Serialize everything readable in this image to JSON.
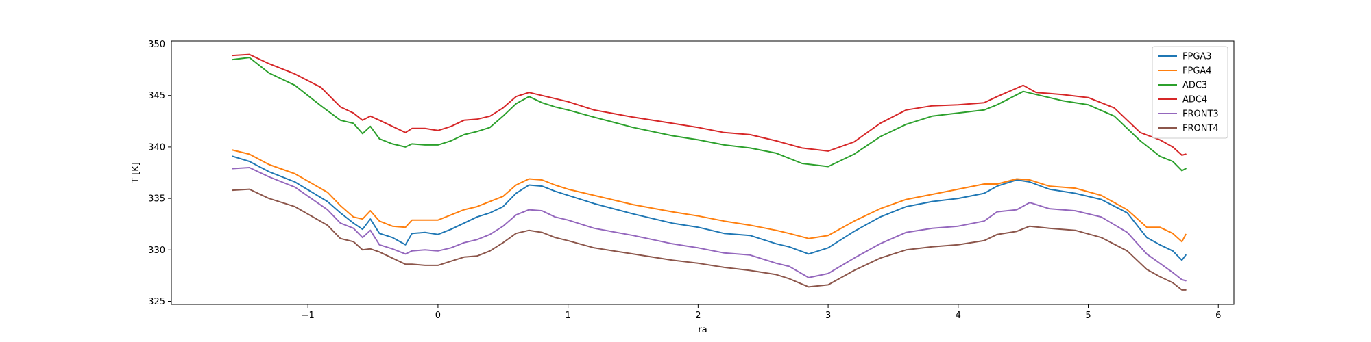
{
  "chart_data": {
    "type": "line",
    "title": "",
    "xlabel": "ra",
    "ylabel": "T [K]",
    "xlim": [
      -2.05,
      6.12
    ],
    "ylim": [
      324.7,
      350.3
    ],
    "xticks": [
      -1,
      0,
      1,
      2,
      3,
      4,
      5,
      6
    ],
    "xtick_labels": [
      "−1",
      "0",
      "1",
      "2",
      "3",
      "4",
      "5",
      "6"
    ],
    "yticks": [
      325,
      330,
      335,
      340,
      345,
      350
    ],
    "ytick_labels": [
      "325",
      "330",
      "335",
      "340",
      "345",
      "350"
    ],
    "grid": false,
    "legend_position": "top-right",
    "series": [
      {
        "name": "FPGA3",
        "color": "#1f77b4",
        "x": [
          -1.58,
          -1.45,
          -1.3,
          -1.1,
          -0.85,
          -0.75,
          -0.65,
          -0.58,
          -0.52,
          -0.45,
          -0.35,
          -0.25,
          -0.2,
          -0.1,
          0.0,
          0.1,
          0.2,
          0.3,
          0.4,
          0.5,
          0.6,
          0.7,
          0.8,
          0.9,
          1.0,
          1.2,
          1.5,
          1.8,
          2.0,
          2.2,
          2.4,
          2.6,
          2.7,
          2.85,
          3.0,
          3.2,
          3.4,
          3.6,
          3.8,
          4.0,
          4.2,
          4.3,
          4.45,
          4.55,
          4.7,
          4.9,
          5.1,
          5.3,
          5.45,
          5.55,
          5.65,
          5.72,
          5.75
        ],
        "y": [
          339.1,
          338.6,
          337.6,
          336.6,
          334.7,
          333.6,
          332.6,
          332.0,
          333.0,
          331.6,
          331.2,
          330.5,
          331.6,
          331.7,
          331.5,
          332.0,
          332.6,
          333.2,
          333.6,
          334.2,
          335.5,
          336.3,
          336.2,
          335.7,
          335.3,
          334.5,
          333.5,
          332.6,
          332.2,
          331.6,
          331.4,
          330.6,
          330.3,
          329.6,
          330.2,
          331.8,
          333.2,
          334.2,
          334.7,
          335.0,
          335.5,
          336.2,
          336.8,
          336.6,
          335.9,
          335.5,
          334.9,
          333.6,
          331.2,
          330.5,
          329.9,
          329.0,
          329.5
        ]
      },
      {
        "name": "FPGA4",
        "color": "#ff7f0e",
        "x": [
          -1.58,
          -1.45,
          -1.3,
          -1.1,
          -0.85,
          -0.75,
          -0.65,
          -0.58,
          -0.52,
          -0.45,
          -0.35,
          -0.25,
          -0.2,
          -0.1,
          0.0,
          0.1,
          0.2,
          0.3,
          0.4,
          0.5,
          0.6,
          0.7,
          0.8,
          0.9,
          1.0,
          1.2,
          1.5,
          1.8,
          2.0,
          2.2,
          2.4,
          2.6,
          2.7,
          2.85,
          3.0,
          3.2,
          3.4,
          3.6,
          3.8,
          4.0,
          4.2,
          4.3,
          4.45,
          4.55,
          4.7,
          4.9,
          5.1,
          5.3,
          5.45,
          5.55,
          5.65,
          5.72,
          5.75
        ],
        "y": [
          339.7,
          339.3,
          338.3,
          337.4,
          335.6,
          334.3,
          333.2,
          333.0,
          333.8,
          332.8,
          332.3,
          332.2,
          332.9,
          332.9,
          332.9,
          333.4,
          333.9,
          334.2,
          334.7,
          335.2,
          336.3,
          336.9,
          336.8,
          336.3,
          335.9,
          335.3,
          334.4,
          333.7,
          333.3,
          332.8,
          332.4,
          331.9,
          331.6,
          331.1,
          331.4,
          332.8,
          334.0,
          334.9,
          335.4,
          335.9,
          336.4,
          336.4,
          336.9,
          336.8,
          336.2,
          336.0,
          335.3,
          333.9,
          332.2,
          332.2,
          331.6,
          330.8,
          331.5
        ]
      },
      {
        "name": "ADC3",
        "color": "#2ca02c",
        "x": [
          -1.58,
          -1.45,
          -1.3,
          -1.1,
          -0.9,
          -0.75,
          -0.65,
          -0.58,
          -0.52,
          -0.45,
          -0.35,
          -0.25,
          -0.2,
          -0.1,
          0.0,
          0.1,
          0.2,
          0.3,
          0.4,
          0.5,
          0.6,
          0.7,
          0.8,
          0.9,
          1.0,
          1.2,
          1.5,
          1.8,
          2.0,
          2.2,
          2.4,
          2.6,
          2.8,
          3.0,
          3.2,
          3.4,
          3.6,
          3.8,
          4.0,
          4.2,
          4.3,
          4.5,
          4.6,
          4.8,
          5.0,
          5.2,
          5.4,
          5.55,
          5.65,
          5.72,
          5.75
        ],
        "y": [
          348.5,
          348.7,
          347.2,
          346.0,
          344.0,
          342.6,
          342.3,
          341.3,
          342.0,
          340.8,
          340.3,
          340.0,
          340.3,
          340.2,
          340.2,
          340.6,
          341.2,
          341.5,
          341.9,
          343.0,
          344.2,
          344.9,
          344.3,
          343.9,
          343.6,
          342.9,
          341.9,
          341.1,
          340.7,
          340.2,
          339.9,
          339.4,
          338.4,
          338.1,
          339.3,
          341.0,
          342.2,
          343.0,
          343.3,
          343.6,
          344.1,
          345.4,
          345.1,
          344.5,
          344.1,
          343.0,
          340.6,
          339.1,
          338.6,
          337.7,
          337.9
        ]
      },
      {
        "name": "ADC4",
        "color": "#d62728",
        "x": [
          -1.58,
          -1.45,
          -1.3,
          -1.1,
          -0.9,
          -0.75,
          -0.65,
          -0.58,
          -0.52,
          -0.45,
          -0.35,
          -0.25,
          -0.2,
          -0.1,
          0.0,
          0.1,
          0.2,
          0.3,
          0.4,
          0.5,
          0.6,
          0.7,
          0.8,
          0.9,
          1.0,
          1.2,
          1.5,
          1.8,
          2.0,
          2.2,
          2.4,
          2.6,
          2.8,
          3.0,
          3.2,
          3.4,
          3.6,
          3.8,
          4.0,
          4.2,
          4.3,
          4.5,
          4.6,
          4.8,
          5.0,
          5.2,
          5.4,
          5.55,
          5.65,
          5.72,
          5.75
        ],
        "y": [
          348.9,
          349.0,
          348.1,
          347.1,
          345.8,
          343.9,
          343.3,
          342.6,
          343.0,
          342.6,
          342.0,
          341.4,
          341.8,
          341.8,
          341.6,
          342.0,
          342.6,
          342.7,
          343.0,
          343.8,
          344.9,
          345.3,
          345.0,
          344.7,
          344.4,
          343.6,
          342.9,
          342.3,
          341.9,
          341.4,
          341.2,
          340.6,
          339.9,
          339.6,
          340.5,
          342.3,
          343.6,
          344.0,
          344.1,
          344.3,
          344.9,
          346.0,
          345.3,
          345.1,
          344.8,
          343.8,
          341.4,
          340.7,
          340.0,
          339.2,
          339.3
        ]
      },
      {
        "name": "FRONT3",
        "color": "#9467bd",
        "x": [
          -1.58,
          -1.45,
          -1.3,
          -1.1,
          -0.85,
          -0.75,
          -0.65,
          -0.58,
          -0.52,
          -0.45,
          -0.35,
          -0.25,
          -0.2,
          -0.1,
          0.0,
          0.1,
          0.2,
          0.3,
          0.4,
          0.5,
          0.6,
          0.7,
          0.8,
          0.9,
          1.0,
          1.2,
          1.5,
          1.8,
          2.0,
          2.2,
          2.4,
          2.6,
          2.7,
          2.85,
          3.0,
          3.2,
          3.4,
          3.6,
          3.8,
          4.0,
          4.2,
          4.3,
          4.45,
          4.55,
          4.7,
          4.9,
          5.1,
          5.3,
          5.45,
          5.55,
          5.65,
          5.72,
          5.75
        ],
        "y": [
          337.9,
          338.0,
          337.1,
          336.1,
          333.9,
          332.6,
          332.1,
          331.2,
          331.9,
          330.5,
          330.1,
          329.6,
          329.9,
          330.0,
          329.9,
          330.2,
          330.7,
          331.0,
          331.5,
          332.3,
          333.4,
          333.9,
          333.8,
          333.2,
          332.9,
          332.1,
          331.4,
          330.6,
          330.2,
          329.7,
          329.5,
          328.7,
          328.4,
          327.3,
          327.7,
          329.2,
          330.6,
          331.7,
          332.1,
          332.3,
          332.8,
          333.7,
          333.9,
          334.6,
          334.0,
          333.8,
          333.2,
          331.7,
          329.6,
          328.7,
          327.8,
          327.1,
          327.0
        ]
      },
      {
        "name": "FRONT4",
        "color": "#8c564b",
        "x": [
          -1.58,
          -1.45,
          -1.3,
          -1.1,
          -0.85,
          -0.75,
          -0.65,
          -0.58,
          -0.52,
          -0.45,
          -0.35,
          -0.25,
          -0.2,
          -0.1,
          0.0,
          0.1,
          0.2,
          0.3,
          0.4,
          0.5,
          0.6,
          0.7,
          0.8,
          0.9,
          1.0,
          1.2,
          1.5,
          1.8,
          2.0,
          2.2,
          2.4,
          2.6,
          2.7,
          2.85,
          3.0,
          3.2,
          3.4,
          3.6,
          3.8,
          4.0,
          4.2,
          4.3,
          4.45,
          4.55,
          4.7,
          4.9,
          5.1,
          5.3,
          5.45,
          5.55,
          5.65,
          5.72,
          5.75
        ],
        "y": [
          335.8,
          335.9,
          335.0,
          334.2,
          332.4,
          331.1,
          330.8,
          330.0,
          330.1,
          329.8,
          329.2,
          328.6,
          328.6,
          328.5,
          328.5,
          328.9,
          329.3,
          329.4,
          329.9,
          330.7,
          331.6,
          331.9,
          331.7,
          331.2,
          330.9,
          330.2,
          329.6,
          329.0,
          328.7,
          328.3,
          328.0,
          327.6,
          327.2,
          326.4,
          326.6,
          328.0,
          329.2,
          330.0,
          330.3,
          330.5,
          330.9,
          331.5,
          331.8,
          332.3,
          332.1,
          331.9,
          331.2,
          329.9,
          328.1,
          327.4,
          326.8,
          326.1,
          326.1
        ]
      }
    ]
  }
}
